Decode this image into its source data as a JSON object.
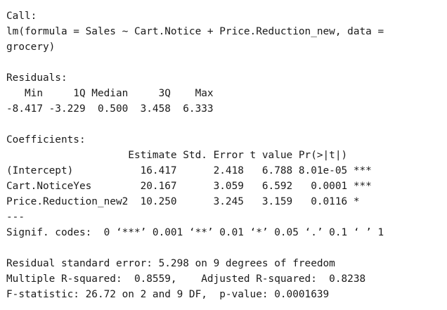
{
  "call": {
    "header": "Call:",
    "formula_line1": "lm(formula = Sales ~ Cart.Notice + Price.Reduction_new, data =",
    "formula_line2": "grocery)"
  },
  "residuals": {
    "header": "Residuals:",
    "labels_row": "   Min     1Q Median     3Q    Max ",
    "values_row": "-8.417 -3.229  0.500  3.458  6.333 "
  },
  "coefficients": {
    "header": "Coefficients:",
    "column_header_row": "                    Estimate Std. Error t value Pr(>|t|)    ",
    "rows": [
      "(Intercept)           16.417      2.418   6.788 8.01e-05 ***",
      "Cart.NoticeYes        20.167      3.059   6.592   0.0001 ***",
      "Price.Reduction_new2  10.250      3.245   3.159   0.0116 *  "
    ],
    "separator": "---",
    "signif_codes": "Signif. codes:  0 ‘***’ 0.001 ‘**’ 0.01 ‘*’ 0.05 ‘.’ 0.1 ‘ ’ 1"
  },
  "summary_stats": {
    "residual_se": "Residual standard error: 5.298 on 9 degrees of freedom",
    "r_squared": "Multiple R-squared:  0.8559,\tAdjusted R-squared:  0.8238 ",
    "f_statistic": "F-statistic: 26.72 on 2 and 9 DF,  p-value: 0.0001639"
  }
}
